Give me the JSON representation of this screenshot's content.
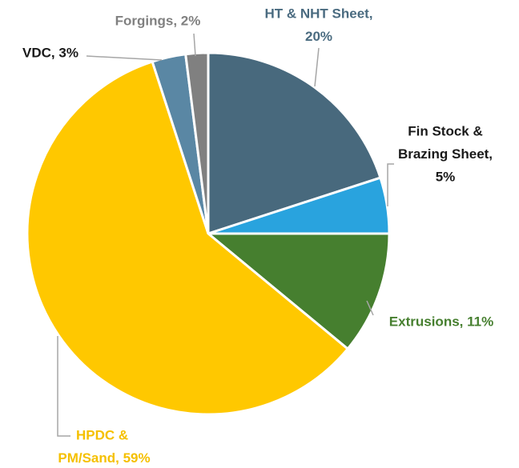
{
  "chart_data": {
    "type": "pie",
    "values": [
      20,
      5,
      11,
      59,
      3,
      2
    ],
    "value_labels": [
      [
        "HT & NHT Sheet,",
        "20%"
      ],
      [
        "Fin Stock &",
        "Brazing Sheet,",
        "5%"
      ],
      [
        "Extrusions, 11%"
      ],
      [
        "HPDC &",
        "PM/Sand, 59%"
      ],
      [
        "VDC, 3%"
      ],
      [
        "Forgings, 2%"
      ]
    ],
    "colors": [
      "#48697d",
      "#29a3de",
      "#467f2f",
      "#ffc800",
      "#5a87a4",
      "#808080"
    ],
    "label_colors": [
      "#4a6b80",
      "#1a1a1a",
      "#467f2f",
      "#f5c000",
      "#1a1a1a",
      "#808080"
    ]
  }
}
